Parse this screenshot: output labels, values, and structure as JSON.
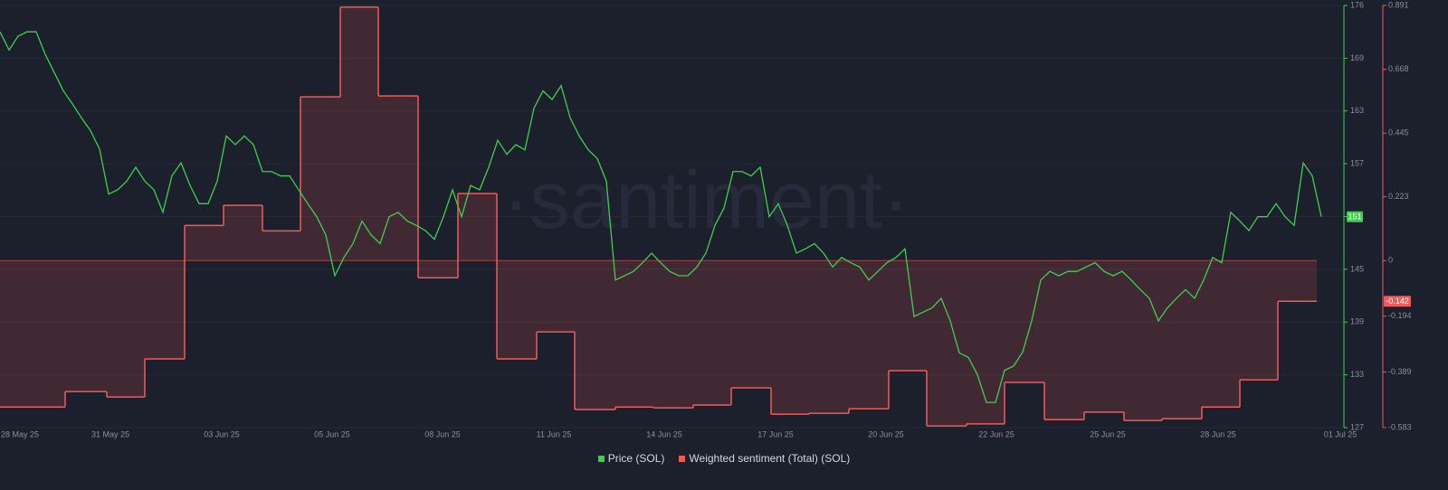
{
  "chart_data": {
    "type": "line",
    "watermark": "·santiment·",
    "grid": true,
    "xlim": [
      0,
      148.3
    ],
    "xticks": [
      {
        "value": 2.2,
        "label": "28 May 25"
      },
      {
        "value": 12.2,
        "label": "31 May 25"
      },
      {
        "value": 24.5,
        "label": "03 Jun 25"
      },
      {
        "value": 36.7,
        "label": "05 Jun 25"
      },
      {
        "value": 48.9,
        "label": "08 Jun 25"
      },
      {
        "value": 61.2,
        "label": "11 Jun 25"
      },
      {
        "value": 73.4,
        "label": "14 Jun 25"
      },
      {
        "value": 85.7,
        "label": "17 Jun 25"
      },
      {
        "value": 97.9,
        "label": "20 Jun 25"
      },
      {
        "value": 110.1,
        "label": "22 Jun 25"
      },
      {
        "value": 122.4,
        "label": "25 Jun 25"
      },
      {
        "value": 134.6,
        "label": "28 Jun 25"
      },
      {
        "value": 148.1,
        "label": "01 Jul 25"
      }
    ],
    "ylim": [
      126.9,
      175.54
    ],
    "yticks": [
      {
        "value": 126.9,
        "label": "127"
      },
      {
        "value": 132.98,
        "label": "133"
      },
      {
        "value": 139.06,
        "label": "139"
      },
      {
        "value": 145.14,
        "label": "145"
      },
      {
        "value": 151.22,
        "label": "151"
      },
      {
        "value": 157.3,
        "label": "157"
      },
      {
        "value": 163.38,
        "label": "163"
      },
      {
        "value": 169.46,
        "label": "169"
      },
      {
        "value": 175.54,
        "label": "176"
      }
    ],
    "y2lim": [
      -0.583,
      0.891
    ],
    "y2ticks": [
      -0.583,
      -0.389,
      -0.194,
      0,
      0.223,
      0.445,
      0.668,
      0.891
    ],
    "x": [
      0,
      1,
      2,
      3,
      4,
      5,
      6,
      7,
      8,
      9,
      10,
      11,
      12,
      13,
      14,
      15,
      16,
      17,
      18,
      19,
      20,
      21,
      22,
      23,
      24,
      25,
      26,
      27,
      28,
      29,
      30,
      31,
      32,
      33,
      34,
      35,
      36,
      37,
      38,
      39,
      40,
      41,
      42,
      43,
      44,
      45,
      46,
      47,
      48,
      49,
      50,
      51,
      52,
      53,
      54,
      55,
      56,
      57,
      58,
      59,
      60,
      61,
      62,
      63,
      64,
      65,
      66,
      67,
      68,
      69,
      70,
      71,
      72,
      73,
      74,
      75,
      76,
      77,
      78,
      79,
      80,
      81,
      82,
      83,
      84,
      85,
      86,
      87,
      88,
      89,
      90,
      91,
      92,
      93,
      94,
      95,
      96,
      97,
      98,
      99,
      100,
      101,
      102,
      103,
      104,
      105,
      106,
      107,
      108,
      109,
      110,
      111,
      112,
      113,
      114,
      115,
      116,
      117,
      118,
      119,
      120,
      121,
      122,
      123,
      124,
      125,
      126,
      127,
      128,
      129,
      130,
      131,
      132,
      133,
      134,
      135,
      136,
      137,
      138,
      139,
      140,
      141,
      142,
      143,
      144,
      145,
      146
    ],
    "series": [
      {
        "name": "Price (SOL)",
        "color": "#3fcf4f",
        "axis": "y",
        "current_label": "151",
        "values": [
          172.5,
          170.4,
          172,
          172.5,
          172.5,
          169.9,
          167.8,
          165.7,
          164.2,
          162.6,
          161.1,
          159,
          153.8,
          154.3,
          155.3,
          156.9,
          155.3,
          154.3,
          151.7,
          155.9,
          157.4,
          154.8,
          152.7,
          152.7,
          155.3,
          160.5,
          159.5,
          160.5,
          159.5,
          156.4,
          156.4,
          155.9,
          155.9,
          154.3,
          152.7,
          151.2,
          149.1,
          144.4,
          146.5,
          148.1,
          150.7,
          149.1,
          148.1,
          151.2,
          151.7,
          150.7,
          150.2,
          149.6,
          148.6,
          151.2,
          154.3,
          151.2,
          154.8,
          154.3,
          156.9,
          160,
          158.4,
          159.5,
          158.9,
          163.7,
          165.7,
          164.7,
          166.3,
          162.6,
          160.5,
          158.9,
          157.9,
          155.3,
          143.9,
          144.4,
          144.9,
          145.9,
          147,
          145.9,
          144.9,
          144.4,
          144.4,
          145.4,
          147,
          150.2,
          152.2,
          156.4,
          156.4,
          155.9,
          156.9,
          151.2,
          152.7,
          150.2,
          147,
          147.5,
          148.1,
          147,
          145.4,
          146.5,
          145.9,
          145.4,
          143.9,
          144.9,
          145.9,
          146.5,
          147.5,
          139.7,
          140.2,
          140.7,
          141.8,
          139.2,
          135.5,
          135,
          133,
          129.8,
          129.8,
          133.5,
          134,
          135.6,
          139.2,
          143.9,
          144.9,
          144.4,
          144.9,
          144.9,
          145.4,
          145.9,
          144.9,
          144.4,
          144.9,
          143.9,
          142.8,
          141.8,
          139.2,
          140.7,
          141.8,
          142.8,
          141.8,
          143.9,
          146.5,
          145.9,
          151.7,
          150.7,
          149.6,
          151.2,
          151.2,
          152.7,
          151.2,
          150.2,
          157.4,
          155.9,
          151.2
        ]
      },
      {
        "name": "Weighted sentiment (Total) (SOL)",
        "color": "#f05a5a",
        "axis": "y2",
        "step": true,
        "current_label": "-0.142",
        "x": [
          0,
          7.2,
          11.8,
          16,
          20.4,
          24.7,
          29,
          33.2,
          37.6,
          41.8,
          46.2,
          50.6,
          54.9,
          59.3,
          63.5,
          68,
          72.2,
          76.6,
          80.8,
          85.2,
          89.4,
          93.8,
          98.2,
          102.4,
          106.8,
          111,
          115.4,
          119.8,
          124.2,
          128.4,
          132.8,
          137,
          141.2,
          145.5
        ],
        "values": [
          -0.511,
          -0.457,
          -0.476,
          -0.343,
          0.123,
          0.193,
          0.104,
          0.572,
          0.885,
          0.575,
          -0.06,
          0.234,
          -0.343,
          -0.249,
          -0.52,
          -0.511,
          -0.514,
          -0.504,
          -0.444,
          -0.536,
          -0.533,
          -0.517,
          -0.384,
          -0.577,
          -0.57,
          -0.425,
          -0.555,
          -0.529,
          -0.558,
          -0.552,
          -0.511,
          -0.416,
          -0.142,
          -0.142
        ]
      }
    ]
  }
}
